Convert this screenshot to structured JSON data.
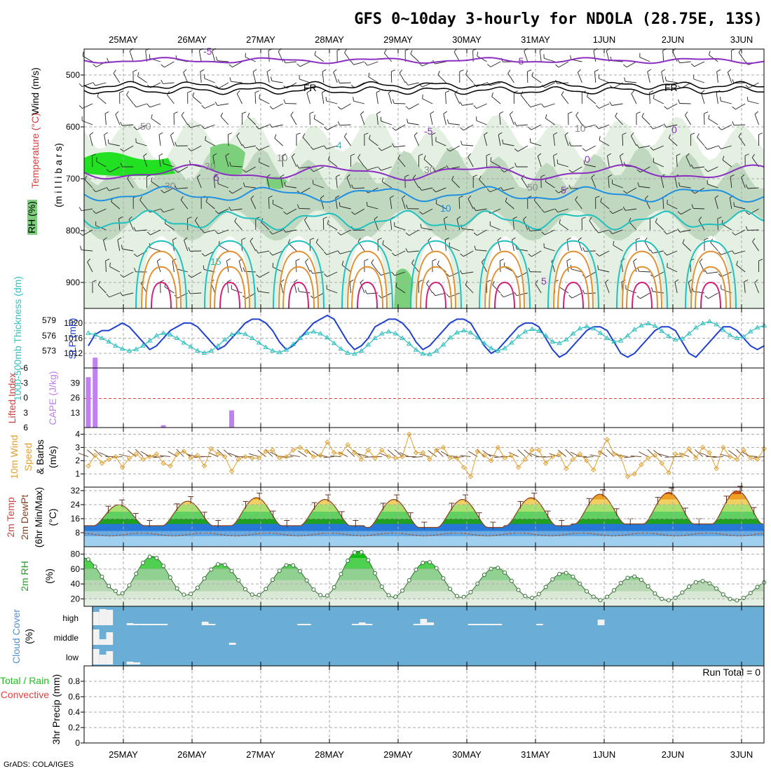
{
  "title": "GFS 0~10day 3-hourly for NDOLA (28.75E, 13S)",
  "credit": "GrADS: COLA/IGES",
  "run_total": "Run Total = 0",
  "dates": [
    "25MAY",
    "26MAY",
    "27MAY",
    "28MAY",
    "29MAY",
    "30MAY",
    "31MAY",
    "1JUN",
    "2JUN",
    "3JUN"
  ],
  "colors": {
    "rh_light": "#e4f0e1",
    "rh_mid": "#c0d8c0",
    "rh_dark": "#98b09c",
    "rh_green": "#7cd07c",
    "rh_bright": "#22e022",
    "temp_purple": "#8a2fbf",
    "temp_blue": "#2090e0",
    "temp_cyan": "#20c0c0",
    "temp_orange": "#e09030",
    "temp_magenta": "#d0207a",
    "slp": "#2040d0",
    "thick": "#30c0c0",
    "cape": "#c080f0",
    "li_line": "#e04040",
    "wind": "#e0a030",
    "cloud_bg": "#6aaed6",
    "cloud_bar": "#f2f2f2",
    "grid": "#aaaaaa"
  },
  "chart_data": [
    {
      "panel": "upper_air",
      "type": "heatmap",
      "ylabel_parts": [
        "Wind (m/s)",
        "Temperature (°C)",
        "(m i l l i b a r s)"
      ],
      "legend": "RH (%)",
      "y_ticks": [
        500,
        600,
        700,
        800,
        900
      ],
      "ylim": [
        950,
        450
      ],
      "contour_labels": [
        "-5",
        "-5",
        "FR",
        "FR",
        "5",
        "-5",
        "0",
        "0",
        "5",
        "10",
        "15",
        "5",
        "4",
        "10",
        "10",
        "30",
        "30",
        "50",
        "50",
        "30"
      ]
    },
    {
      "panel": "thickness_slp",
      "type": "line",
      "ylabel_left": "1000-500mb Thickness (dm)",
      "ylabel_right": "SLP (mb)",
      "left_ticks": [
        579,
        576,
        573
      ],
      "right_ticks": [
        1020,
        1016,
        1012
      ],
      "series": [
        {
          "name": "SLP (mb)",
          "values": [
            1014,
            1017,
            1018,
            1018,
            1019,
            1020,
            1019,
            1017,
            1015,
            1013,
            1014,
            1016,
            1018,
            1019,
            1020,
            1020,
            1019,
            1017,
            1015,
            1013,
            1014,
            1016,
            1018,
            1020,
            1021,
            1021,
            1020,
            1018,
            1015,
            1013,
            1014,
            1016,
            1018,
            1020,
            1021,
            1022,
            1021,
            1018,
            1015,
            1013,
            1014,
            1016,
            1019,
            1020,
            1021,
            1021,
            1020,
            1018,
            1015,
            1013,
            1014,
            1016,
            1018,
            1020,
            1021,
            1021,
            1020,
            1017,
            1014,
            1012,
            1013,
            1015,
            1017,
            1019,
            1020,
            1020,
            1019,
            1016,
            1013,
            1011,
            1012,
            1014,
            1016,
            1018,
            1019,
            1019,
            1018,
            1015,
            1012,
            1011,
            1012,
            1014,
            1016,
            1018,
            1019,
            1019,
            1018,
            1015,
            1012,
            1011,
            1013,
            1015,
            1017,
            1019,
            1019,
            1018,
            1016,
            1014,
            1013,
            1014
          ]
        },
        {
          "name": "Thickness (dm)",
          "values": [
            576.5,
            576.2,
            575.5,
            574.8,
            574.0,
            573.4,
            573.0,
            573.3,
            574.0,
            575.0,
            576.0,
            576.5,
            576.2,
            575.5,
            574.6,
            573.8,
            573.0,
            572.6,
            573.0,
            574.0,
            575.2,
            576.2,
            576.6,
            576.3,
            575.5,
            574.6,
            573.7,
            573.0,
            572.7,
            573.2,
            574.3,
            575.5,
            576.5,
            576.8,
            576.4,
            575.6,
            574.5,
            573.4,
            572.6,
            572.4,
            573.0,
            574.2,
            575.5,
            576.4,
            576.8,
            576.4,
            575.5,
            574.4,
            573.2,
            572.4,
            572.3,
            573.0,
            574.2,
            575.6,
            576.6,
            577.0,
            576.6,
            575.6,
            574.5,
            573.5,
            573.0,
            573.5,
            574.6,
            575.8,
            576.8,
            577.3,
            576.9,
            576.0,
            574.8,
            574.5,
            575.2,
            576.4,
            577.4,
            577.8,
            577.4,
            576.5,
            575.5,
            574.8,
            575.0,
            576.0,
            577.2,
            578.0,
            578.4,
            577.9,
            576.9,
            575.9,
            575.2,
            575.4,
            576.4,
            577.6,
            578.4,
            578.8,
            578.2,
            577.1,
            576.1,
            575.5,
            575.8,
            576.8,
            577.6,
            578.0
          ]
        }
      ]
    },
    {
      "panel": "cape_li",
      "type": "bar",
      "ylabel_left": "Lifted Index",
      "ylabel_right": "CAPE (J/kg)",
      "left_ticks": [
        -6,
        -3,
        0,
        3,
        6
      ],
      "right_ticks": [
        39,
        26,
        13
      ],
      "cape_bars": [
        {
          "x": 0,
          "value": 44
        },
        {
          "x": 1,
          "value": 61
        },
        {
          "x": 11,
          "value": 2
        },
        {
          "x": 21,
          "value": 15
        }
      ]
    },
    {
      "panel": "wind10m",
      "type": "line",
      "ylabel": "10m Wind Speed (m/s) & Barbs",
      "y_ticks": [
        1,
        2,
        3,
        4
      ],
      "ylim": [
        0,
        4.5
      ],
      "series": [
        {
          "name": "Speed",
          "values": [
            1.6,
            2.4,
            1.8,
            2.1,
            2.3,
            1.5,
            2.2,
            2.5,
            2.1,
            2.3,
            2.5,
            1.8,
            1.6,
            2.5,
            2.7,
            2.2,
            2.4,
            1.6,
            2.9,
            2.5,
            2.3,
            1.2,
            2.1,
            2.3,
            2.2,
            2.2,
            2.7,
            2.8,
            2.2,
            2.3,
            2.8,
            3.0,
            2.7,
            2.3,
            2.4,
            3.4,
            2.6,
            2.5,
            3.2,
            2.6,
            2.1,
            2.8,
            2.2,
            2.8,
            2.3,
            2.2,
            2.3,
            4.0,
            2.6,
            2.6,
            2.1,
            2.8,
            3.0,
            2.2,
            2.2,
            1.5,
            0.8,
            2.7,
            2.4,
            2.0,
            3.0,
            2.2,
            2.4,
            1.5,
            2.1,
            2.8,
            2.8,
            1.8,
            2.3,
            2.5,
            1.4,
            2.1,
            2.5,
            2.0,
            1.3,
            2.6,
            3.6,
            2.5,
            2.3,
            0.8,
            1.0,
            1.7,
            2.2,
            2.4,
            1.8,
            1.1,
            2.5,
            2.4,
            2.9,
            2.2,
            3.0,
            2.6,
            1.4,
            3.0,
            2.3,
            2.1,
            2.8,
            2.2,
            2.1,
            2.9
          ]
        }
      ]
    },
    {
      "panel": "temp2m",
      "type": "area",
      "ylabel": "2m Temp / 2m DewPt (6hr Min/Max) (°C)",
      "y_ticks": [
        8,
        16,
        24,
        32
      ],
      "ylim": [
        0,
        34
      ],
      "series": [
        {
          "name": "2m Temp",
          "daily_max": [
            24,
            26,
            28,
            27,
            27,
            27,
            28,
            30,
            31,
            32
          ],
          "daily_min": [
            12,
            12,
            12,
            12,
            11,
            11,
            12,
            13,
            13,
            13
          ]
        },
        {
          "name": "2m DewPt",
          "mean": 7
        }
      ]
    },
    {
      "panel": "rh2m",
      "type": "area",
      "ylabel": "2m RH (%)",
      "y_ticks": [
        20,
        40,
        60,
        80
      ],
      "ylim": [
        10,
        90
      ],
      "daily_max": [
        75,
        77,
        67,
        66,
        84,
        70,
        62,
        55,
        50,
        44
      ],
      "daily_min": [
        30,
        25,
        25,
        24,
        23,
        22,
        22,
        21,
        18,
        18
      ]
    },
    {
      "panel": "cloud",
      "type": "bar",
      "ylabel": "Cloud Cover (%)",
      "levels": [
        "high",
        "middle",
        "low"
      ]
    },
    {
      "panel": "precip",
      "type": "bar",
      "ylabel": "3hr Precip (mm)",
      "legend": [
        "Total / Rain",
        "Convective"
      ],
      "y_ticks": [
        0,
        0.2,
        0.4,
        0.6,
        0.8
      ],
      "ylim": [
        0,
        1
      ],
      "values": []
    }
  ]
}
